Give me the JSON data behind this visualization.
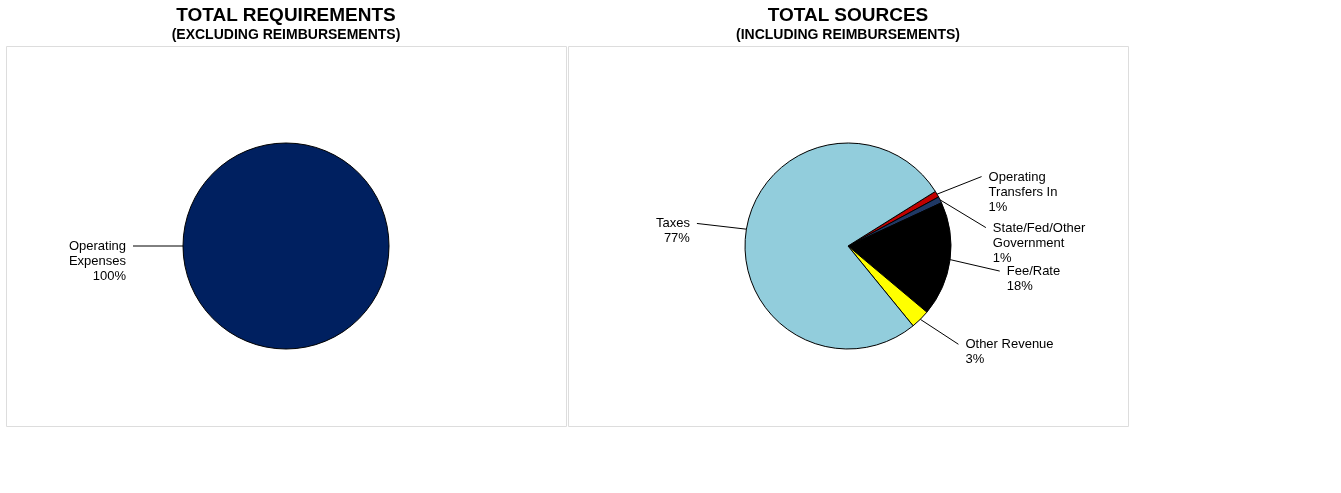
{
  "chart_data": [
    {
      "type": "pie",
      "title": "TOTAL REQUIREMENTS",
      "subtitle": "(EXCLUDING REIMBURSEMENTS)",
      "categories": [
        "Operating Expenses"
      ],
      "values": [
        100
      ],
      "colors": [
        "#002060"
      ],
      "value_labels": [
        "100%"
      ]
    },
    {
      "type": "pie",
      "title": "TOTAL SOURCES",
      "subtitle": "(INCLUDING REIMBURSEMENTS)",
      "categories": [
        "Operating Transfers In",
        "State/Fed/Other Government",
        "Fee/Rate",
        "Other Revenue",
        "Taxes"
      ],
      "values": [
        1,
        1,
        18,
        3,
        77
      ],
      "colors": [
        "#c00000",
        "#1f3864",
        "#000000",
        "#ffff00",
        "#92cddc"
      ],
      "value_labels": [
        "1%",
        "1%",
        "18%",
        "3%",
        "77%"
      ]
    }
  ]
}
